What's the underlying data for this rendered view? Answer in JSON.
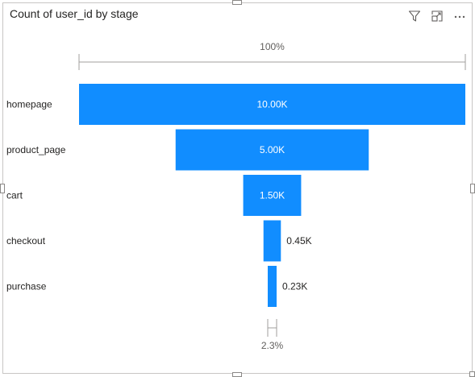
{
  "visual": {
    "title": "Count of user_id by stage"
  },
  "header_icons": [
    "filter-icon",
    "focus-mode-icon",
    "more-options-icon"
  ],
  "colors": {
    "bar": "#118dff",
    "bracket": "#a19f9d"
  },
  "chart_data": {
    "type": "funnel",
    "title": "Count of user_id by stage",
    "categories": [
      "homepage",
      "product_page",
      "cart",
      "checkout",
      "purchase"
    ],
    "values": [
      10000,
      5000,
      1500,
      450,
      230
    ],
    "data_labels": [
      "10.00K",
      "5.00K",
      "1.50K",
      "0.45K",
      "0.23K"
    ],
    "top_percent_label": "100%",
    "bottom_percent_label": "2.3%"
  }
}
